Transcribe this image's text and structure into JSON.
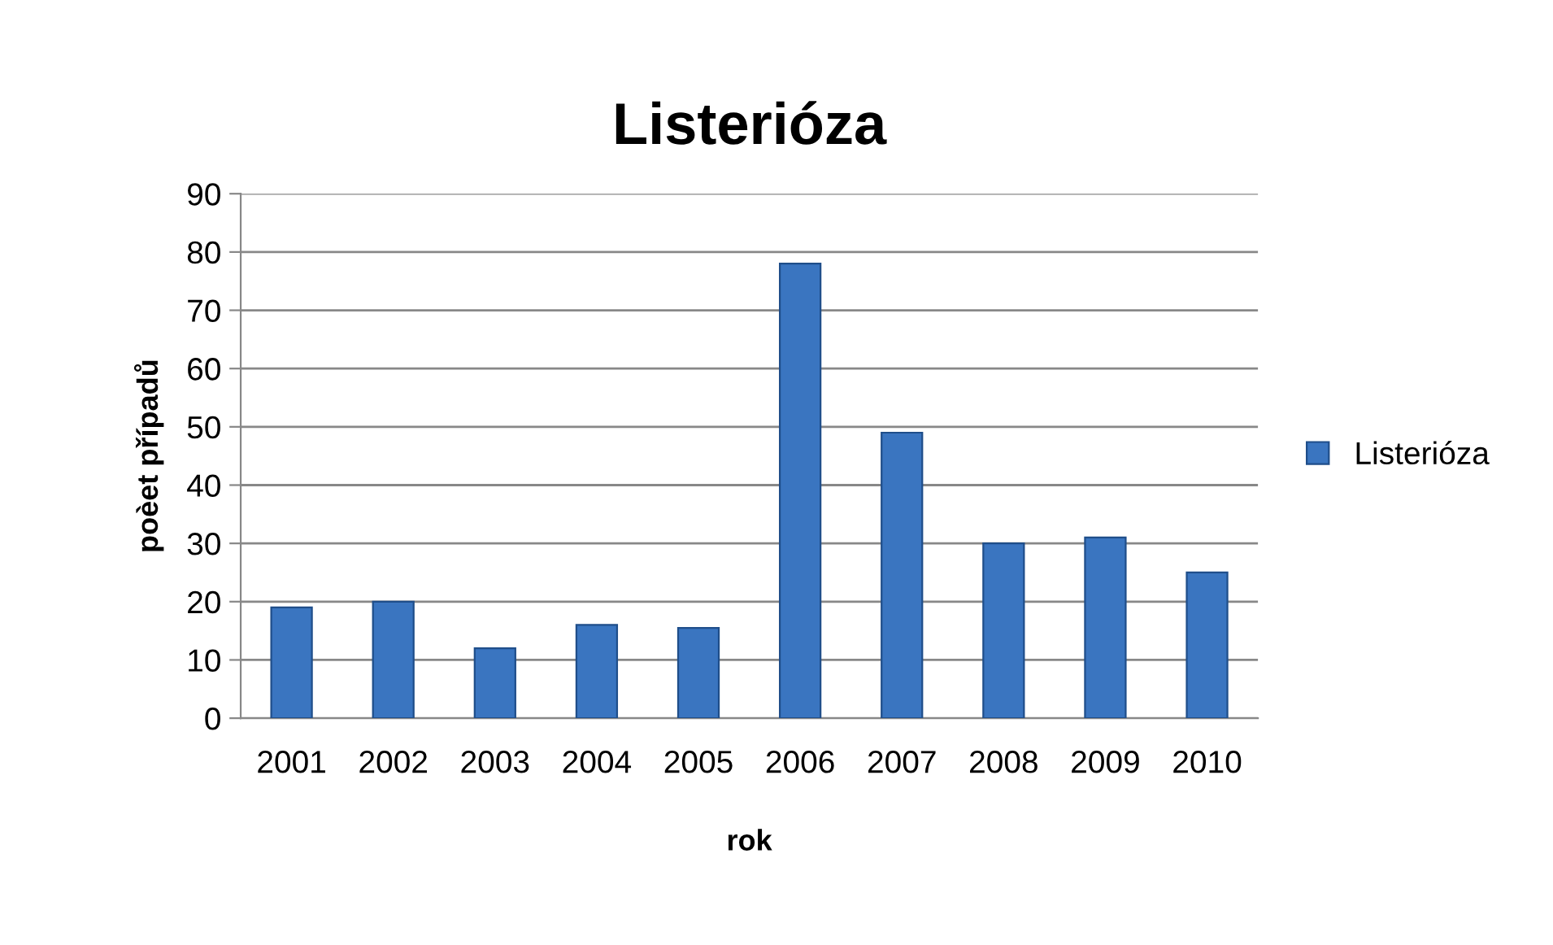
{
  "chart_data": {
    "type": "bar",
    "title": "Listerióza",
    "xlabel": "rok",
    "ylabel": "poèet případů",
    "categories": [
      "2001",
      "2002",
      "2003",
      "2004",
      "2005",
      "2006",
      "2007",
      "2008",
      "2009",
      "2010"
    ],
    "series": [
      {
        "name": "Listerióza",
        "color": "#3a75c0",
        "values": [
          19,
          20,
          12,
          16,
          15.5,
          78,
          49,
          30,
          31,
          25
        ]
      }
    ],
    "ylim": [
      0,
      90
    ],
    "yticks": [
      0,
      10,
      20,
      30,
      40,
      50,
      60,
      70,
      80,
      90
    ],
    "grid": "y",
    "legend": "right"
  }
}
